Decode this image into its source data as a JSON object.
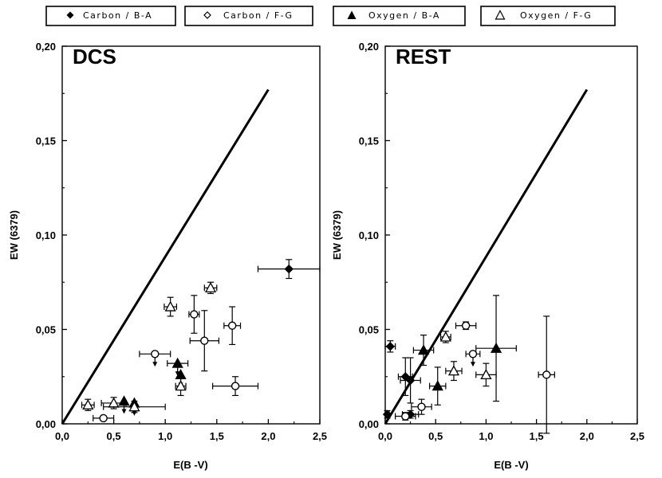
{
  "colors": {
    "ink": "#000000",
    "background": "#ffffff",
    "open_fill": "#ffffff"
  },
  "legend": [
    {
      "label": "Carbon / B-A",
      "marker": "diamond",
      "filled": true
    },
    {
      "label": "Carbon / F-G",
      "marker": "diamond",
      "filled": false
    },
    {
      "label": "Oxygen / B-A",
      "marker": "triangle",
      "filled": true
    },
    {
      "label": "Oxygen / F-G",
      "marker": "triangle",
      "filled": false
    }
  ],
  "chart_data": [
    {
      "type": "scatter",
      "title": "DCS",
      "xlabel": "E(B -V)",
      "ylabel": "EW (6379)",
      "xlim": [
        0,
        2.5
      ],
      "ylim": [
        0,
        0.2
      ],
      "xticks": [
        "0,0",
        "0,5",
        "1,0",
        "1,5",
        "2,0",
        "2,5"
      ],
      "yticks": [
        "0,00",
        "0,05",
        "0,10",
        "0,15",
        "0,20"
      ],
      "reference_line": {
        "x": [
          0.0,
          2.0
        ],
        "y": [
          0.0,
          0.177
        ]
      },
      "series": [
        {
          "name": "Carbon / B-A",
          "marker": "diamond",
          "filled": true,
          "points": [
            {
              "x": 2.2,
              "y": 0.082,
              "xerr": 0.3,
              "yerr": 0.005
            }
          ]
        },
        {
          "name": "Carbon / F-G",
          "marker": "diamond",
          "filled": false,
          "points": [
            {
              "x": 0.4,
              "y": 0.003,
              "xerr": 0.1,
              "yerr": 0
            },
            {
              "x": 0.9,
              "y": 0.037,
              "xerr": 0.15,
              "yerr": 0,
              "upper_limit": true
            },
            {
              "x": 1.28,
              "y": 0.058,
              "xerr": 0.05,
              "yerr": 0.01
            },
            {
              "x": 1.38,
              "y": 0.044,
              "xerr": 0.14,
              "yerr": 0.016
            },
            {
              "x": 1.65,
              "y": 0.052,
              "xerr": 0.08,
              "yerr": 0.01
            },
            {
              "x": 1.68,
              "y": 0.02,
              "xerr": 0.22,
              "yerr": 0.005
            }
          ]
        },
        {
          "name": "Oxygen / B-A",
          "marker": "triangle",
          "filled": true,
          "points": [
            {
              "x": 0.6,
              "y": 0.012,
              "xerr": 0,
              "yerr": 0,
              "upper_limit": true
            },
            {
              "x": 0.7,
              "y": 0.011,
              "xerr": 0,
              "yerr": 0,
              "upper_limit": true
            },
            {
              "x": 1.12,
              "y": 0.032,
              "xerr": 0.1,
              "yerr": 0,
              "upper_limit": true
            },
            {
              "x": 1.15,
              "y": 0.026,
              "xerr": 0,
              "yerr": 0,
              "upper_limit": true
            }
          ]
        },
        {
          "name": "Oxygen / F-G",
          "marker": "triangle",
          "filled": false,
          "points": [
            {
              "x": 0.25,
              "y": 0.01,
              "xerr": 0.06,
              "yerr": 0.003
            },
            {
              "x": 0.5,
              "y": 0.011,
              "xerr": 0.12,
              "yerr": 0.003
            },
            {
              "x": 0.7,
              "y": 0.009,
              "xerr": 0.3,
              "yerr": 0.003
            },
            {
              "x": 1.05,
              "y": 0.062,
              "xerr": 0.06,
              "yerr": 0.005
            },
            {
              "x": 1.15,
              "y": 0.02,
              "xerr": 0.05,
              "yerr": 0.005
            },
            {
              "x": 1.44,
              "y": 0.072,
              "xerr": 0.06,
              "yerr": 0.003
            }
          ]
        }
      ]
    },
    {
      "type": "scatter",
      "title": "REST",
      "xlabel": "E(B -V)",
      "ylabel": "EW (6379)",
      "xlim": [
        0,
        2.5
      ],
      "ylim": [
        0,
        0.2
      ],
      "xticks": [
        "0,0",
        "0,5",
        "1,0",
        "1,5",
        "2,0",
        "2,5"
      ],
      "yticks": [
        "0,00",
        "0,05",
        "0,10",
        "0,15",
        "0,20"
      ],
      "reference_line": {
        "x": [
          0.0,
          2.0
        ],
        "y": [
          0.0,
          0.177
        ]
      },
      "series": [
        {
          "name": "Carbon / B-A",
          "marker": "diamond",
          "filled": true,
          "points": [
            {
              "x": 0.05,
              "y": 0.041,
              "xerr": 0.05,
              "yerr": 0.003
            },
            {
              "x": 0.02,
              "y": 0.005,
              "xerr": 0.02,
              "yerr": 0.002
            },
            {
              "x": 0.2,
              "y": 0.025,
              "xerr": 0.07,
              "yerr": 0.01
            },
            {
              "x": 0.25,
              "y": 0.023,
              "xerr": 0.1,
              "yerr": 0.012
            },
            {
              "x": 0.25,
              "y": 0.005,
              "xerr": 0.08,
              "yerr": 0.002
            }
          ]
        },
        {
          "name": "Carbon / F-G",
          "marker": "diamond",
          "filled": false,
          "points": [
            {
              "x": 0.2,
              "y": 0.004,
              "xerr": 0.1,
              "yerr": 0.002
            },
            {
              "x": 0.36,
              "y": 0.009,
              "xerr": 0.1,
              "yerr": 0.004
            },
            {
              "x": 0.8,
              "y": 0.052,
              "xerr": 0.1,
              "yerr": 0.002
            },
            {
              "x": 0.87,
              "y": 0.037,
              "xerr": 0.07,
              "yerr": 0,
              "upper_limit": true
            },
            {
              "x": 1.6,
              "y": 0.026,
              "xerr": 0.08,
              "yerr": 0.031
            }
          ]
        },
        {
          "name": "Oxygen / B-A",
          "marker": "triangle",
          "filled": true,
          "points": [
            {
              "x": 0.38,
              "y": 0.039,
              "xerr": 0.1,
              "yerr": 0.008
            },
            {
              "x": 0.52,
              "y": 0.02,
              "xerr": 0.08,
              "yerr": 0.01
            },
            {
              "x": 1.1,
              "y": 0.04,
              "xerr": 0.2,
              "yerr": 0.028
            }
          ]
        },
        {
          "name": "Oxygen / F-G",
          "marker": "triangle",
          "filled": false,
          "points": [
            {
              "x": 0.6,
              "y": 0.046,
              "xerr": 0.05,
              "yerr": 0.003
            },
            {
              "x": 0.68,
              "y": 0.028,
              "xerr": 0.08,
              "yerr": 0.005
            },
            {
              "x": 1.0,
              "y": 0.026,
              "xerr": 0.1,
              "yerr": 0.006
            }
          ]
        }
      ]
    }
  ]
}
